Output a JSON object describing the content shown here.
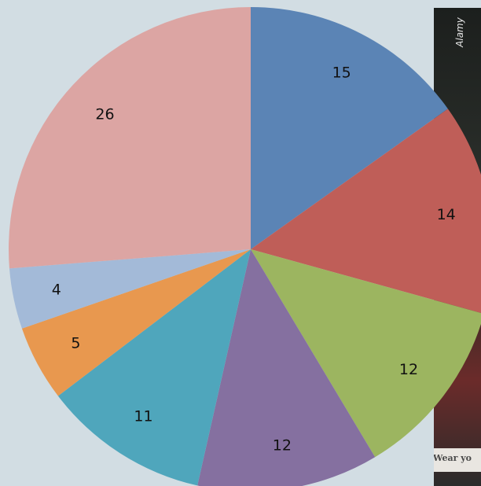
{
  "photo": {
    "credit": "Alamy",
    "sign_text": "Wear yo"
  },
  "chart_data": {
    "type": "pie",
    "title": "",
    "slices": [
      {
        "label": "15",
        "value": 15,
        "color": "#5b84b5"
      },
      {
        "label": "14",
        "value": 14,
        "color": "#bf5e58"
      },
      {
        "label": "12",
        "value": 12,
        "color": "#9cb560"
      },
      {
        "label": "12",
        "value": 12,
        "color": "#8570a0"
      },
      {
        "label": "11",
        "value": 11,
        "color": "#4fa6bc"
      },
      {
        "label": "5",
        "value": 5,
        "color": "#e8984f"
      },
      {
        "label": "4",
        "value": 4,
        "color": "#a3bad8"
      },
      {
        "label": "26",
        "value": 26,
        "color": "#dca5a3"
      }
    ]
  }
}
